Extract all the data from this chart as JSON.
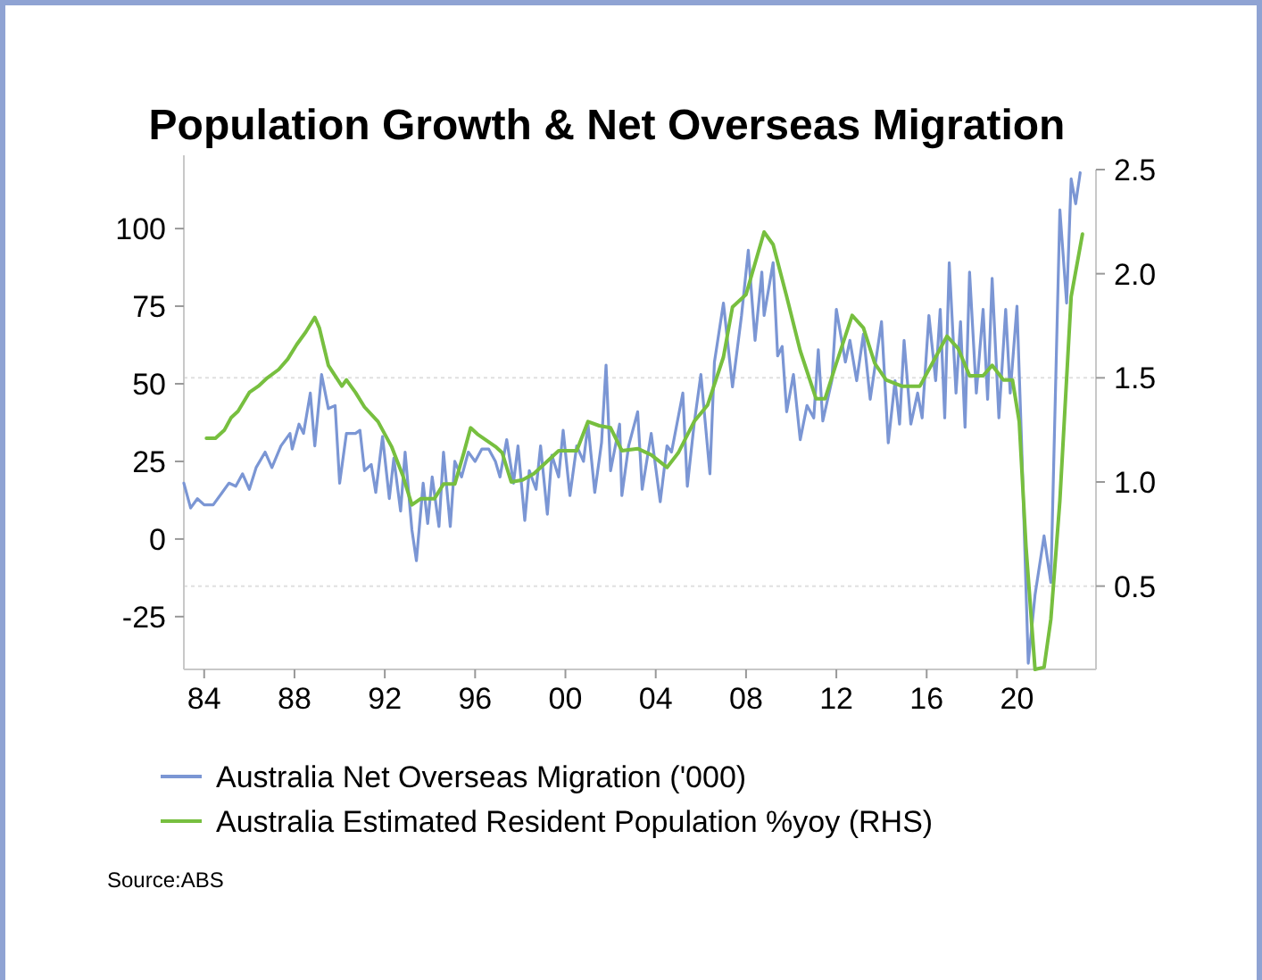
{
  "chart_data": {
    "type": "line",
    "title": "Population Growth & Net Overseas Migration",
    "xlim": [
      1983.1,
      2023.5
    ],
    "xticks": [
      {
        "value": 1984,
        "label": "84"
      },
      {
        "value": 1988,
        "label": "88"
      },
      {
        "value": 1992,
        "label": "92"
      },
      {
        "value": 1996,
        "label": "96"
      },
      {
        "value": 2000,
        "label": "00"
      },
      {
        "value": 2004,
        "label": "04"
      },
      {
        "value": 2008,
        "label": "08"
      },
      {
        "value": 2012,
        "label": "12"
      },
      {
        "value": 2016,
        "label": "16"
      },
      {
        "value": 2020,
        "label": "20"
      }
    ],
    "ylim": [
      -42,
      119
    ],
    "yticks": [
      -25,
      0,
      25,
      50,
      75,
      100
    ],
    "y2lim": [
      0.1,
      2.5
    ],
    "y2ticks": [
      {
        "value": 0.5,
        "label": "0.5"
      },
      {
        "value": 1,
        "label": "1.0"
      },
      {
        "value": 1.5,
        "label": "1.5"
      },
      {
        "value": 2,
        "label": "2.0"
      },
      {
        "value": 2.5,
        "label": "2.5"
      }
    ],
    "ref_lines": [
      {
        "axis": "y2",
        "value": 0.5,
        "color": "#e0e0e0",
        "line_style": "dotted"
      },
      {
        "axis": "y2",
        "value": 1.5,
        "color": "#e0e0e0",
        "line_style": "dotted"
      }
    ],
    "legend": "bottom",
    "grid": false,
    "annotations": [
      "Source:ABS"
    ],
    "series": [
      {
        "name": "Australia Net Overseas Migration ('000)",
        "color": "#7b96d4",
        "x": [
          1983.1,
          1983.4,
          1983.7,
          1984.0,
          1984.4,
          1984.8,
          1985.1,
          1985.4,
          1985.7,
          1986.0,
          1986.3,
          1986.7,
          1987.0,
          1987.4,
          1987.8,
          1987.9,
          1988.2,
          1988.4,
          1988.7,
          1988.9,
          1989.2,
          1989.5,
          1989.8,
          1990.0,
          1990.3,
          1990.7,
          1990.9,
          1991.1,
          1991.4,
          1991.6,
          1991.9,
          1992.2,
          1992.4,
          1992.7,
          1992.9,
          1993.2,
          1993.4,
          1993.7,
          1993.9,
          1994.1,
          1994.4,
          1994.6,
          1994.9,
          1995.1,
          1995.4,
          1995.7,
          1996.0,
          1996.3,
          1996.6,
          1996.9,
          1997.1,
          1997.4,
          1997.7,
          1997.9,
          1998.2,
          1998.4,
          1998.7,
          1998.9,
          1999.2,
          1999.4,
          1999.7,
          1999.9,
          2000.2,
          2000.5,
          2000.8,
          2001.0,
          2001.3,
          2001.6,
          2001.8,
          2002.0,
          2002.4,
          2002.5,
          2002.8,
          2003.2,
          2003.4,
          2003.8,
          2004.2,
          2004.5,
          2004.7,
          2005.2,
          2005.4,
          2005.7,
          2006.0,
          2006.4,
          2006.6,
          2007.0,
          2007.4,
          2007.8,
          2008.1,
          2008.4,
          2008.7,
          2008.8,
          2009.2,
          2009.4,
          2009.6,
          2009.8,
          2010.1,
          2010.4,
          2010.7,
          2011.0,
          2011.2,
          2011.4,
          2011.8,
          2012.0,
          2012.4,
          2012.6,
          2012.9,
          2013.2,
          2013.5,
          2013.7,
          2014.0,
          2014.3,
          2014.6,
          2014.8,
          2015.0,
          2015.3,
          2015.6,
          2015.8,
          2016.1,
          2016.4,
          2016.6,
          2016.8,
          2017.0,
          2017.3,
          2017.5,
          2017.7,
          2017.9,
          2018.2,
          2018.5,
          2018.7,
          2018.9,
          2019.2,
          2019.5,
          2019.7,
          2020.0,
          2020.2,
          2020.5,
          2020.8,
          2021.2,
          2021.5,
          2021.9,
          2022.2,
          2022.4,
          2022.6,
          2022.8
        ],
        "values": [
          18,
          10,
          13,
          11,
          11,
          15,
          18,
          17,
          21,
          16,
          23,
          28,
          23,
          30,
          34,
          29,
          37,
          34,
          47,
          30,
          53,
          42,
          43,
          18,
          34,
          34,
          35,
          22,
          24,
          15,
          33,
          13,
          26,
          9,
          28,
          3,
          -7,
          18,
          5,
          20,
          4,
          28,
          4,
          25,
          20,
          28,
          25,
          29,
          29,
          25,
          20,
          32,
          18,
          30,
          6,
          22,
          16,
          30,
          8,
          27,
          20,
          35,
          14,
          30,
          25,
          37,
          15,
          31,
          56,
          22,
          37,
          14,
          30,
          41,
          16,
          34,
          12,
          30,
          28,
          47,
          17,
          37,
          53,
          21,
          57,
          76,
          49,
          72,
          93,
          64,
          86,
          72,
          89,
          59,
          62,
          41,
          53,
          32,
          43,
          39,
          61,
          38,
          51,
          74,
          57,
          64,
          51,
          66,
          45,
          55,
          70,
          31,
          51,
          37,
          64,
          37,
          47,
          39,
          72,
          51,
          74,
          39,
          89,
          47,
          70,
          36,
          86,
          47,
          74,
          45,
          84,
          39,
          74,
          47,
          75,
          32,
          -40,
          -18,
          1,
          -14,
          106,
          76,
          116,
          108,
          118
        ]
      },
      {
        "name": "Australia Estimated Resident Population %yoy (RHS)",
        "color": "#77bf3f",
        "axis": "y2",
        "x": [
          1984.1,
          1984.5,
          1984.9,
          1985.2,
          1985.5,
          1986.0,
          1986.4,
          1986.8,
          1987.3,
          1987.7,
          1988.1,
          1988.5,
          1988.9,
          1989.1,
          1989.5,
          1990.1,
          1990.3,
          1990.7,
          1991.1,
          1991.7,
          1992.3,
          1992.8,
          1993.2,
          1993.6,
          1994.2,
          1994.6,
          1995.1,
          1995.5,
          1995.8,
          1996.1,
          1996.5,
          1996.9,
          1997.2,
          1997.6,
          1998.1,
          1998.6,
          1999.2,
          1999.7,
          2000.5,
          2001.0,
          2001.5,
          2002.0,
          2002.5,
          2003.2,
          2003.8,
          2004.5,
          2005.0,
          2005.7,
          2006.3,
          2007.0,
          2007.4,
          2008.0,
          2008.8,
          2009.2,
          2009.8,
          2010.4,
          2011.1,
          2011.5,
          2012.0,
          2012.7,
          2013.2,
          2013.7,
          2014.2,
          2014.9,
          2015.7,
          2016.4,
          2016.9,
          2017.4,
          2017.9,
          2018.5,
          2018.9,
          2019.4,
          2019.8,
          2020.1,
          2020.4,
          2020.8,
          2021.2,
          2021.5,
          2021.9,
          2022.4,
          2022.9
        ],
        "values": [
          1.21,
          1.21,
          1.25,
          1.31,
          1.34,
          1.43,
          1.46,
          1.5,
          1.54,
          1.59,
          1.66,
          1.72,
          1.79,
          1.74,
          1.56,
          1.46,
          1.49,
          1.43,
          1.36,
          1.29,
          1.17,
          1.03,
          0.89,
          0.92,
          0.92,
          0.99,
          0.99,
          1.14,
          1.26,
          1.23,
          1.2,
          1.17,
          1.14,
          1.0,
          1.01,
          1.04,
          1.1,
          1.15,
          1.15,
          1.29,
          1.27,
          1.26,
          1.15,
          1.16,
          1.13,
          1.07,
          1.14,
          1.29,
          1.37,
          1.6,
          1.84,
          1.9,
          2.2,
          2.14,
          1.89,
          1.63,
          1.4,
          1.4,
          1.57,
          1.8,
          1.74,
          1.57,
          1.49,
          1.46,
          1.46,
          1.6,
          1.7,
          1.64,
          1.51,
          1.51,
          1.56,
          1.49,
          1.49,
          1.29,
          0.69,
          0.1,
          0.11,
          0.34,
          0.91,
          1.89,
          2.19
        ]
      }
    ]
  }
}
